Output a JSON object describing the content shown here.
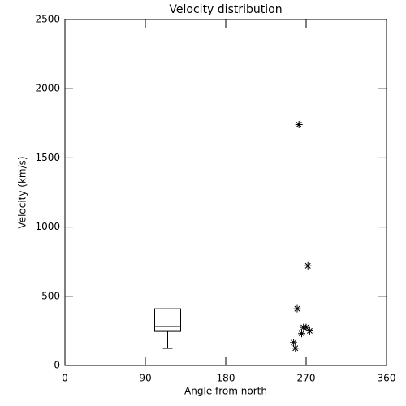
{
  "chart_data": {
    "type": "scatter",
    "title": "Velocity distribution",
    "x_label": "Angle from north",
    "y_label": "Velocity (km/s)",
    "x": [
      262,
      272,
      260,
      267,
      270,
      265,
      274,
      256,
      258
    ],
    "values": [
      1740,
      720,
      410,
      275,
      275,
      230,
      250,
      165,
      125
    ],
    "color": "#000000",
    "box": {
      "x": 115,
      "min": 123,
      "q1": 246,
      "median": 282,
      "q3": 410,
      "max": 410
    },
    "xlim": [
      0,
      360
    ],
    "xticks": [
      0,
      90,
      180,
      270,
      360
    ],
    "ylim": [
      0,
      2500
    ],
    "yticks": [
      0,
      500,
      1000,
      1500,
      2000,
      2500
    ]
  }
}
